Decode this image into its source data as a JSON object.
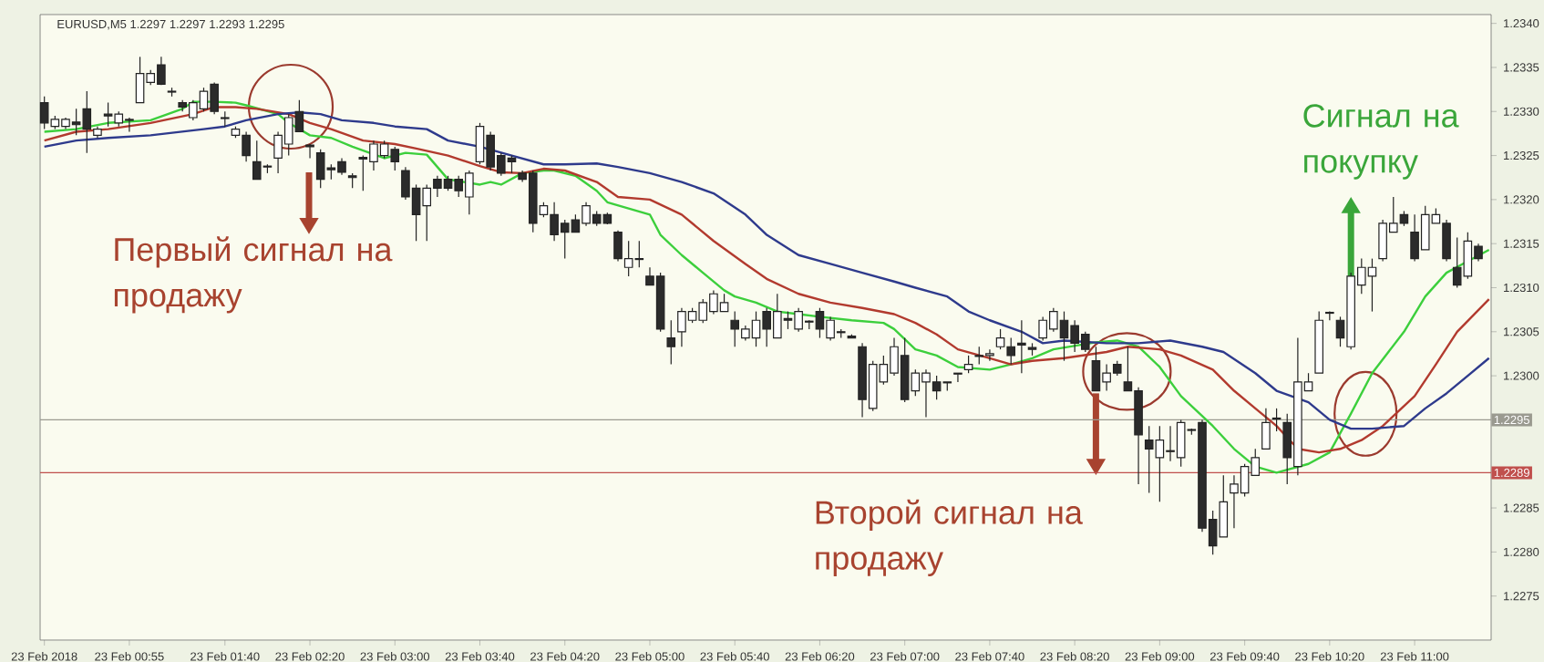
{
  "chart_data": {
    "type": "candlestick",
    "title": "EURUSD,M5 1.2297 1.2297 1.2293 1.2295",
    "x": [
      "2018-02-23T00:15",
      "2018-02-23T00:20",
      "2018-02-23T00:25",
      "2018-02-23T00:30",
      "2018-02-23T00:35",
      "2018-02-23T00:40",
      "2018-02-23T00:45",
      "2018-02-23T00:50",
      "2018-02-23T00:55",
      "2018-02-23T01:00",
      "2018-02-23T01:05",
      "2018-02-23T01:10",
      "2018-02-23T01:15",
      "2018-02-23T01:20",
      "2018-02-23T01:25",
      "2018-02-23T01:30",
      "2018-02-23T01:35",
      "2018-02-23T01:40",
      "2018-02-23T01:45",
      "2018-02-23T01:50",
      "2018-02-23T01:55",
      "2018-02-23T02:00",
      "2018-02-23T02:05",
      "2018-02-23T02:10",
      "2018-02-23T02:15",
      "2018-02-23T02:20",
      "2018-02-23T02:25",
      "2018-02-23T02:30",
      "2018-02-23T02:35",
      "2018-02-23T02:40",
      "2018-02-23T02:45",
      "2018-02-23T02:50",
      "2018-02-23T02:55",
      "2018-02-23T03:00",
      "2018-02-23T03:05",
      "2018-02-23T03:10",
      "2018-02-23T03:15",
      "2018-02-23T03:20",
      "2018-02-23T03:25",
      "2018-02-23T03:30",
      "2018-02-23T03:35",
      "2018-02-23T03:40",
      "2018-02-23T03:45",
      "2018-02-23T03:50",
      "2018-02-23T03:55",
      "2018-02-23T04:00",
      "2018-02-23T04:05",
      "2018-02-23T04:10",
      "2018-02-23T04:15",
      "2018-02-23T04:20",
      "2018-02-23T04:25",
      "2018-02-23T04:30",
      "2018-02-23T04:35",
      "2018-02-23T04:40",
      "2018-02-23T04:45",
      "2018-02-23T04:50",
      "2018-02-23T04:55",
      "2018-02-23T05:00",
      "2018-02-23T05:05",
      "2018-02-23T05:10",
      "2018-02-23T05:15",
      "2018-02-23T05:20",
      "2018-02-23T05:25",
      "2018-02-23T05:30",
      "2018-02-23T05:35",
      "2018-02-23T05:40",
      "2018-02-23T05:45",
      "2018-02-23T05:50",
      "2018-02-23T05:55",
      "2018-02-23T06:00",
      "2018-02-23T06:05",
      "2018-02-23T06:10",
      "2018-02-23T06:15",
      "2018-02-23T06:20",
      "2018-02-23T06:25",
      "2018-02-23T06:30",
      "2018-02-23T06:35",
      "2018-02-23T06:40",
      "2018-02-23T06:45",
      "2018-02-23T06:50",
      "2018-02-23T06:55",
      "2018-02-23T07:00",
      "2018-02-23T07:05",
      "2018-02-23T07:10",
      "2018-02-23T07:15",
      "2018-02-23T07:20",
      "2018-02-23T07:25",
      "2018-02-23T07:30",
      "2018-02-23T07:35",
      "2018-02-23T07:40",
      "2018-02-23T07:45",
      "2018-02-23T07:50",
      "2018-02-23T07:55",
      "2018-02-23T08:00",
      "2018-02-23T08:05",
      "2018-02-23T08:10",
      "2018-02-23T08:15",
      "2018-02-23T08:20",
      "2018-02-23T08:25",
      "2018-02-23T08:30",
      "2018-02-23T08:35",
      "2018-02-23T08:40",
      "2018-02-23T08:45",
      "2018-02-23T08:50",
      "2018-02-23T08:55",
      "2018-02-23T09:00",
      "2018-02-23T09:05",
      "2018-02-23T09:10",
      "2018-02-23T09:15",
      "2018-02-23T09:20",
      "2018-02-23T09:25",
      "2018-02-23T09:30",
      "2018-02-23T09:35",
      "2018-02-23T09:40",
      "2018-02-23T09:45",
      "2018-02-23T09:50",
      "2018-02-23T09:55",
      "2018-02-23T10:00",
      "2018-02-23T10:05",
      "2018-02-23T10:10",
      "2018-02-23T10:15",
      "2018-02-23T10:20",
      "2018-02-23T10:25",
      "2018-02-23T10:30",
      "2018-02-23T10:35",
      "2018-02-23T10:40",
      "2018-02-23T10:45",
      "2018-02-23T10:50",
      "2018-02-23T10:55",
      "2018-02-23T11:00",
      "2018-02-23T11:05",
      "2018-02-23T11:10",
      "2018-02-23T11:15",
      "2018-02-23T11:20",
      "2018-02-23T11:25",
      "2018-02-23T11:30"
    ],
    "ohlc": [
      [
        1.2331,
        1.23317,
        1.2328,
        1.23287
      ],
      [
        1.23283,
        1.23295,
        1.2328,
        1.23291
      ],
      [
        1.23283,
        1.23293,
        1.2328,
        1.23291
      ],
      [
        1.23288,
        1.23303,
        1.23273,
        1.23285
      ],
      [
        1.23303,
        1.23323,
        1.23253,
        1.2328
      ],
      [
        1.23273,
        1.23283,
        1.2327,
        1.2328
      ],
      [
        1.23297,
        1.2331,
        1.23283,
        1.23295
      ],
      [
        1.23287,
        1.233,
        1.23283,
        1.23297
      ],
      [
        1.23291,
        1.23293,
        1.23277,
        1.2329
      ],
      [
        1.2331,
        1.23362,
        1.2331,
        1.23343
      ],
      [
        1.23333,
        1.23347,
        1.2333,
        1.23343
      ],
      [
        1.23353,
        1.23362,
        1.2333,
        1.23331
      ],
      [
        1.23323,
        1.23327,
        1.23317,
        1.23322
      ],
      [
        1.2331,
        1.23313,
        1.233,
        1.23305
      ],
      [
        1.23293,
        1.23313,
        1.2329,
        1.2331
      ],
      [
        1.23303,
        1.23327,
        1.233,
        1.23323
      ],
      [
        1.23331,
        1.23333,
        1.23297,
        1.233
      ],
      [
        1.23293,
        1.233,
        1.23283,
        1.23292
      ],
      [
        1.23273,
        1.23283,
        1.2327,
        1.2328
      ],
      [
        1.23273,
        1.23277,
        1.23243,
        1.2325
      ],
      [
        1.23243,
        1.23267,
        1.23223,
        1.23223
      ],
      [
        1.23238,
        1.2324,
        1.2323,
        1.23237
      ],
      [
        1.23247,
        1.23277,
        1.2323,
        1.23273
      ],
      [
        1.23263,
        1.23297,
        1.2325,
        1.23293
      ],
      [
        1.233,
        1.23313,
        1.23277,
        1.23277
      ],
      [
        1.23262,
        1.23263,
        1.23247,
        1.2326
      ],
      [
        1.23253,
        1.23257,
        1.23213,
        1.23223
      ],
      [
        1.23236,
        1.2324,
        1.23223,
        1.23234
      ],
      [
        1.23243,
        1.23247,
        1.23228,
        1.23231
      ],
      [
        1.23227,
        1.2323,
        1.23213,
        1.23225
      ],
      [
        1.23248,
        1.2325,
        1.2321,
        1.23246
      ],
      [
        1.23243,
        1.23267,
        1.23233,
        1.23263
      ],
      [
        1.2325,
        1.23267,
        1.23247,
        1.23263
      ],
      [
        1.23257,
        1.2326,
        1.23233,
        1.23243
      ],
      [
        1.23233,
        1.23237,
        1.232,
        1.23203
      ],
      [
        1.23213,
        1.23217,
        1.23153,
        1.23183
      ],
      [
        1.23193,
        1.23217,
        1.23153,
        1.23213
      ],
      [
        1.23223,
        1.23227,
        1.23203,
        1.23213
      ],
      [
        1.23223,
        1.23227,
        1.2321,
        1.23213
      ],
      [
        1.23223,
        1.23227,
        1.23203,
        1.2321
      ],
      [
        1.23203,
        1.23233,
        1.23183,
        1.2323
      ],
      [
        1.23243,
        1.23287,
        1.2324,
        1.23283
      ],
      [
        1.23273,
        1.23277,
        1.23233,
        1.23237
      ],
      [
        1.2325,
        1.23253,
        1.23227,
        1.2323
      ],
      [
        1.23247,
        1.2325,
        1.2323,
        1.23243
      ],
      [
        1.2323,
        1.23233,
        1.2322,
        1.23223
      ],
      [
        1.2323,
        1.23233,
        1.23163,
        1.23173
      ],
      [
        1.23183,
        1.23197,
        1.2318,
        1.23193
      ],
      [
        1.23183,
        1.23197,
        1.23153,
        1.2316
      ],
      [
        1.23173,
        1.23177,
        1.23133,
        1.23163
      ],
      [
        1.23177,
        1.23183,
        1.23163,
        1.23163
      ],
      [
        1.23173,
        1.23197,
        1.2317,
        1.23193
      ],
      [
        1.23183,
        1.23187,
        1.2317,
        1.23173
      ],
      [
        1.23183,
        1.23185,
        1.23172,
        1.23173
      ],
      [
        1.23163,
        1.23165,
        1.2313,
        1.23133
      ],
      [
        1.23123,
        1.23153,
        1.23113,
        1.23133
      ],
      [
        1.23133,
        1.23153,
        1.23123,
        1.23132
      ],
      [
        1.23113,
        1.23123,
        1.23103,
        1.23103
      ],
      [
        1.23113,
        1.23117,
        1.2305,
        1.23053
      ],
      [
        1.23043,
        1.23063,
        1.23013,
        1.23033
      ],
      [
        1.2305,
        1.23077,
        1.23033,
        1.23073
      ],
      [
        1.23063,
        1.23077,
        1.2306,
        1.23073
      ],
      [
        1.23063,
        1.23087,
        1.2306,
        1.23083
      ],
      [
        1.23073,
        1.23097,
        1.2307,
        1.23093
      ],
      [
        1.23073,
        1.23093,
        1.23073,
        1.23083
      ],
      [
        1.23063,
        1.23073,
        1.23033,
        1.23053
      ],
      [
        1.23043,
        1.23057,
        1.2304,
        1.23053
      ],
      [
        1.23043,
        1.23073,
        1.23033,
        1.23063
      ],
      [
        1.23073,
        1.23077,
        1.23033,
        1.23053
      ],
      [
        1.23043,
        1.23093,
        1.23043,
        1.23073
      ],
      [
        1.23065,
        1.23073,
        1.23053,
        1.23063
      ],
      [
        1.23053,
        1.23077,
        1.2305,
        1.23073
      ],
      [
        1.23062,
        1.23063,
        1.23053,
        1.23061
      ],
      [
        1.23073,
        1.23077,
        1.23043,
        1.23053
      ],
      [
        1.23043,
        1.23067,
        1.2304,
        1.23063
      ],
      [
        1.2305,
        1.23053,
        1.23043,
        1.23049
      ],
      [
        1.23045,
        1.23047,
        1.23043,
        1.23043
      ],
      [
        1.23033,
        1.23037,
        1.22953,
        1.22973
      ],
      [
        1.22963,
        1.23017,
        1.2296,
        1.23013
      ],
      [
        1.22993,
        1.23023,
        1.2299,
        1.23013
      ],
      [
        1.23003,
        1.23043,
        1.23,
        1.23033
      ],
      [
        1.23023,
        1.23043,
        1.2297,
        1.22973
      ],
      [
        1.22983,
        1.23007,
        1.22977,
        1.23003
      ],
      [
        1.22993,
        1.23007,
        1.22953,
        1.23003
      ],
      [
        1.22993,
        1.23,
        1.22973,
        1.22983
      ],
      [
        1.22993,
        1.22993,
        1.22983,
        1.22992
      ],
      [
        1.23003,
        1.23003,
        1.22993,
        1.23002
      ],
      [
        1.23007,
        1.23023,
        1.23003,
        1.23013
      ],
      [
        1.23023,
        1.23033,
        1.23013,
        1.23022
      ],
      [
        1.23023,
        1.2303,
        1.23017,
        1.23025
      ],
      [
        1.23033,
        1.23053,
        1.2303,
        1.23043
      ],
      [
        1.23033,
        1.23043,
        1.23013,
        1.23023
      ],
      [
        1.23037,
        1.23063,
        1.23003,
        1.23035
      ],
      [
        1.23032,
        1.23037,
        1.23023,
        1.2303
      ],
      [
        1.23043,
        1.23067,
        1.2304,
        1.23063
      ],
      [
        1.23053,
        1.23077,
        1.2305,
        1.23073
      ],
      [
        1.23063,
        1.23073,
        1.23017,
        1.23043
      ],
      [
        1.23057,
        1.23063,
        1.23027,
        1.23037
      ],
      [
        1.23047,
        1.2305,
        1.23027,
        1.2303
      ],
      [
        1.23017,
        1.23033,
        1.22983,
        1.22983
      ],
      [
        1.22993,
        1.23013,
        1.22983,
        1.23003
      ],
      [
        1.23013,
        1.23017,
        1.23,
        1.23003
      ],
      [
        1.22993,
        1.23033,
        1.22983,
        1.22983
      ],
      [
        1.22983,
        1.22987,
        1.22877,
        1.22933
      ],
      [
        1.22927,
        1.22943,
        1.22867,
        1.22917
      ],
      [
        1.22907,
        1.22943,
        1.22857,
        1.22927
      ],
      [
        1.22915,
        1.22943,
        1.22903,
        1.22914
      ],
      [
        1.22907,
        1.2295,
        1.22897,
        1.22947
      ],
      [
        1.22939,
        1.2294,
        1.22933,
        1.22938
      ],
      [
        1.22947,
        1.2295,
        1.22823,
        1.22827
      ],
      [
        1.22837,
        1.22847,
        1.22797,
        1.22807
      ],
      [
        1.22817,
        1.22887,
        1.22817,
        1.22857
      ],
      [
        1.22867,
        1.22887,
        1.22827,
        1.22877
      ],
      [
        1.22867,
        1.229,
        1.22863,
        1.22897
      ],
      [
        1.22887,
        1.22917,
        1.22887,
        1.22907
      ],
      [
        1.22917,
        1.22963,
        1.22917,
        1.22947
      ],
      [
        1.22951,
        1.22963,
        1.22937,
        1.22952
      ],
      [
        1.22947,
        1.22957,
        1.22877,
        1.22907
      ],
      [
        1.22897,
        1.23043,
        1.22887,
        1.22993
      ],
      [
        1.22983,
        1.23003,
        1.22983,
        1.22993
      ],
      [
        1.23003,
        1.23073,
        1.23003,
        1.23063
      ],
      [
        1.23072,
        1.23073,
        1.23063,
        1.23071
      ],
      [
        1.23063,
        1.23067,
        1.23033,
        1.23043
      ],
      [
        1.23033,
        1.23117,
        1.2303,
        1.23113
      ],
      [
        1.23103,
        1.23133,
        1.23093,
        1.23123
      ],
      [
        1.23113,
        1.23133,
        1.23073,
        1.23123
      ],
      [
        1.23133,
        1.23177,
        1.2313,
        1.23173
      ],
      [
        1.23163,
        1.23203,
        1.23163,
        1.23173
      ],
      [
        1.23183,
        1.23187,
        1.2317,
        1.23173
      ],
      [
        1.23163,
        1.23183,
        1.2313,
        1.23133
      ],
      [
        1.23143,
        1.23193,
        1.23143,
        1.23183
      ],
      [
        1.23173,
        1.2319,
        1.23173,
        1.23183
      ],
      [
        1.23173,
        1.23177,
        1.2313,
        1.23133
      ],
      [
        1.23123,
        1.23157,
        1.231,
        1.23103
      ],
      [
        1.23113,
        1.23163,
        1.2311,
        1.23153
      ],
      [
        1.23147,
        1.2315,
        1.2313,
        1.23133
      ]
    ],
    "series": [
      {
        "type": "line",
        "color": "#3ccf3c",
        "x": [
          "2018-02-23T00:15",
          "2018-02-23T00:30",
          "2018-02-23T00:45",
          "2018-02-23T01:05",
          "2018-02-23T01:20",
          "2018-02-23T01:25",
          "2018-02-23T01:35",
          "2018-02-23T01:45",
          "2018-02-23T01:50",
          "2018-02-23T02:05",
          "2018-02-23T02:10",
          "2018-02-23T02:20",
          "2018-02-23T02:30",
          "2018-02-23T02:40",
          "2018-02-23T02:55",
          "2018-02-23T03:05",
          "2018-02-23T03:15",
          "2018-02-23T03:25",
          "2018-02-23T03:40",
          "2018-02-23T03:45",
          "2018-02-23T03:50",
          "2018-02-23T04:00",
          "2018-02-23T04:10",
          "2018-02-23T04:15",
          "2018-02-23T04:25",
          "2018-02-23T04:35",
          "2018-02-23T04:40",
          "2018-02-23T04:50",
          "2018-02-23T05:00",
          "2018-02-23T05:05",
          "2018-02-23T05:15",
          "2018-02-23T05:25",
          "2018-02-23T05:35",
          "2018-02-23T05:40",
          "2018-02-23T05:50",
          "2018-02-23T06:00",
          "2018-02-23T06:10",
          "2018-02-23T06:20",
          "2018-02-23T06:35",
          "2018-02-23T06:50",
          "2018-02-23T06:55",
          "2018-02-23T07:05",
          "2018-02-23T07:15",
          "2018-02-23T07:25",
          "2018-02-23T07:40",
          "2018-02-23T07:50",
          "2018-02-23T08:00",
          "2018-02-23T08:10",
          "2018-02-23T08:30",
          "2018-02-23T08:40",
          "2018-02-23T08:50",
          "2018-02-23T09:00",
          "2018-02-23T09:10",
          "2018-02-23T09:25",
          "2018-02-23T09:35",
          "2018-02-23T09:45",
          "2018-02-23T09:55",
          "2018-02-23T10:10",
          "2018-02-23T10:20",
          "2018-02-23T10:30",
          "2018-02-23T10:40",
          "2018-02-23T10:55",
          "2018-02-23T11:05",
          "2018-02-23T11:15",
          "2018-02-23T11:25",
          "2018-02-23T11:35"
        ],
        "values": [
          1.23277,
          1.2328,
          1.23287,
          1.2329,
          1.23303,
          1.23311,
          1.23311,
          1.2331,
          1.23307,
          1.23297,
          1.23287,
          1.23273,
          1.2327,
          1.2326,
          1.23247,
          1.23253,
          1.23251,
          1.23223,
          1.23217,
          1.2322,
          1.23217,
          1.2323,
          1.23233,
          1.23233,
          1.23227,
          1.2321,
          1.23197,
          1.2319,
          1.23183,
          1.2316,
          1.23137,
          1.23117,
          1.23097,
          1.2309,
          1.23083,
          1.23073,
          1.2307,
          1.23067,
          1.23063,
          1.2306,
          1.23053,
          1.2303,
          1.23023,
          1.2301,
          1.23007,
          1.23013,
          1.2302,
          1.2303,
          1.23038,
          1.2304,
          1.23033,
          1.2301,
          1.22977,
          1.22943,
          1.22917,
          1.22897,
          1.2289,
          1.229,
          1.22913,
          1.22957,
          1.23003,
          1.2305,
          1.2309,
          1.23117,
          1.2313,
          1.23143
        ]
      },
      {
        "type": "line",
        "color": "#b23a2e",
        "x": [
          "2018-02-23T00:15",
          "2018-02-23T00:30",
          "2018-02-23T00:45",
          "2018-02-23T01:05",
          "2018-02-23T01:25",
          "2018-02-23T01:35",
          "2018-02-23T01:45",
          "2018-02-23T01:55",
          "2018-02-23T02:10",
          "2018-02-23T02:20",
          "2018-02-23T02:30",
          "2018-02-23T02:45",
          "2018-02-23T03:00",
          "2018-02-23T03:10",
          "2018-02-23T03:25",
          "2018-02-23T03:40",
          "2018-02-23T03:50",
          "2018-02-23T04:00",
          "2018-02-23T04:10",
          "2018-02-23T04:20",
          "2018-02-23T04:35",
          "2018-02-23T04:45",
          "2018-02-23T05:00",
          "2018-02-23T05:15",
          "2018-02-23T05:30",
          "2018-02-23T05:45",
          "2018-02-23T05:55",
          "2018-02-23T06:10",
          "2018-02-23T06:25",
          "2018-02-23T06:40",
          "2018-02-23T06:55",
          "2018-02-23T07:05",
          "2018-02-23T07:15",
          "2018-02-23T07:25",
          "2018-02-23T07:40",
          "2018-02-23T07:50",
          "2018-02-23T08:00",
          "2018-02-23T08:15",
          "2018-02-23T08:35",
          "2018-02-23T08:45",
          "2018-02-23T09:00",
          "2018-02-23T09:10",
          "2018-02-23T09:25",
          "2018-02-23T09:35",
          "2018-02-23T09:45",
          "2018-02-23T09:55",
          "2018-02-23T10:05",
          "2018-02-23T10:15",
          "2018-02-23T10:25",
          "2018-02-23T10:35",
          "2018-02-23T10:45",
          "2018-02-23T11:00",
          "2018-02-23T11:10",
          "2018-02-23T11:20",
          "2018-02-23T11:35"
        ],
        "values": [
          1.23267,
          1.23277,
          1.2328,
          1.23287,
          1.23297,
          1.23305,
          1.23305,
          1.23303,
          1.23297,
          1.23287,
          1.2328,
          1.23267,
          1.23263,
          1.23258,
          1.2325,
          1.23238,
          1.23231,
          1.2323,
          1.23235,
          1.23233,
          1.2322,
          1.23203,
          1.232,
          1.23183,
          1.23153,
          1.23127,
          1.2311,
          1.23093,
          1.23083,
          1.23077,
          1.2307,
          1.2306,
          1.23047,
          1.2303,
          1.2302,
          1.23013,
          1.23017,
          1.2302,
          1.23027,
          1.23033,
          1.2303,
          1.23023,
          1.23007,
          1.22983,
          1.22963,
          1.22943,
          1.22917,
          1.22913,
          1.22917,
          1.22927,
          1.22943,
          1.22977,
          1.23013,
          1.2305,
          1.23087
        ]
      },
      {
        "type": "line",
        "color": "#2e3a8c",
        "x": [
          "2018-02-23T00:15",
          "2018-02-23T00:30",
          "2018-02-23T00:45",
          "2018-02-23T01:05",
          "2018-02-23T01:30",
          "2018-02-23T01:40",
          "2018-02-23T01:50",
          "2018-02-23T02:05",
          "2018-02-23T02:15",
          "2018-02-23T02:25",
          "2018-02-23T02:35",
          "2018-02-23T02:50",
          "2018-02-23T03:00",
          "2018-02-23T03:15",
          "2018-02-23T03:25",
          "2018-02-23T03:40",
          "2018-02-23T03:55",
          "2018-02-23T04:10",
          "2018-02-23T04:20",
          "2018-02-23T04:35",
          "2018-02-23T04:45",
          "2018-02-23T05:00",
          "2018-02-23T05:15",
          "2018-02-23T05:30",
          "2018-02-23T05:45",
          "2018-02-23T05:55",
          "2018-02-23T06:10",
          "2018-02-23T06:25",
          "2018-02-23T06:40",
          "2018-02-23T06:55",
          "2018-02-23T07:05",
          "2018-02-23T07:20",
          "2018-02-23T07:30",
          "2018-02-23T07:40",
          "2018-02-23T07:55",
          "2018-02-23T08:05",
          "2018-02-23T08:15",
          "2018-02-23T08:35",
          "2018-02-23T08:50",
          "2018-02-23T09:05",
          "2018-02-23T09:20",
          "2018-02-23T09:30",
          "2018-02-23T09:45",
          "2018-02-23T09:55",
          "2018-02-23T10:10",
          "2018-02-23T10:20",
          "2018-02-23T10:30",
          "2018-02-23T10:40",
          "2018-02-23T10:55",
          "2018-02-23T11:05",
          "2018-02-23T11:15",
          "2018-02-23T11:25",
          "2018-02-23T11:35"
        ],
        "values": [
          1.2326,
          1.23267,
          1.2327,
          1.23273,
          1.2328,
          1.23283,
          1.2329,
          1.23297,
          1.23299,
          1.23297,
          1.2329,
          1.23287,
          1.23283,
          1.2328,
          1.23267,
          1.2326,
          1.2325,
          1.2324,
          1.2324,
          1.23241,
          1.23237,
          1.2323,
          1.2322,
          1.23207,
          1.23183,
          1.2316,
          1.23137,
          1.23127,
          1.23117,
          1.23107,
          1.231,
          1.2309,
          1.23073,
          1.23063,
          1.2305,
          1.23037,
          1.2304,
          1.23037,
          1.23037,
          1.2304,
          1.23033,
          1.23027,
          1.23003,
          1.22983,
          1.2297,
          1.2295,
          1.2294,
          1.2294,
          1.22943,
          1.22963,
          1.2298,
          1.23,
          1.2302
        ]
      }
    ],
    "xlim": [
      "2018-02-23T00:13",
      "2018-02-23T11:36"
    ],
    "xticks": [
      {
        "value": "2018-02-23T00:15",
        "label": "23 Feb 2018"
      },
      {
        "value": "2018-02-23T00:55",
        "label": "23 Feb 00:55"
      },
      {
        "value": "2018-02-23T01:40",
        "label": "23 Feb 01:40"
      },
      {
        "value": "2018-02-23T02:20",
        "label": "23 Feb 02:20"
      },
      {
        "value": "2018-02-23T03:00",
        "label": "23 Feb 03:00"
      },
      {
        "value": "2018-02-23T03:40",
        "label": "23 Feb 03:40"
      },
      {
        "value": "2018-02-23T04:20",
        "label": "23 Feb 04:20"
      },
      {
        "value": "2018-02-23T05:00",
        "label": "23 Feb 05:00"
      },
      {
        "value": "2018-02-23T05:40",
        "label": "23 Feb 05:40"
      },
      {
        "value": "2018-02-23T06:20",
        "label": "23 Feb 06:20"
      },
      {
        "value": "2018-02-23T07:00",
        "label": "23 Feb 07:00"
      },
      {
        "value": "2018-02-23T07:40",
        "label": "23 Feb 07:40"
      },
      {
        "value": "2018-02-23T08:20",
        "label": "23 Feb 08:20"
      },
      {
        "value": "2018-02-23T09:00",
        "label": "23 Feb 09:00"
      },
      {
        "value": "2018-02-23T09:40",
        "label": "23 Feb 09:40"
      },
      {
        "value": "2018-02-23T10:20",
        "label": "23 Feb 10:20"
      },
      {
        "value": "2018-02-23T11:00",
        "label": "23 Feb 11:00"
      }
    ],
    "ylim": [
      1.227,
      1.2341
    ],
    "yticks": [
      {
        "value": 1.234,
        "label": "1.2340"
      },
      1.2335,
      {
        "value": 1.233,
        "label": "1.2330"
      },
      1.2325,
      {
        "value": 1.232,
        "label": "1.2320"
      },
      1.2315,
      {
        "value": 1.231,
        "label": "1.2310"
      },
      1.2305,
      {
        "value": 1.23,
        "label": "1.2300"
      },
      1.2285,
      {
        "value": 1.228,
        "label": "1.2280"
      },
      1.2275
    ],
    "ref_lines": [
      {
        "axis": "y",
        "value": 1.2295,
        "label": "1.2295",
        "color": "#9a9a90"
      },
      {
        "axis": "y",
        "value": 1.2289,
        "label": "1.2289",
        "color": "#c0504d"
      }
    ],
    "annotations": [
      "Первый сигнал на продажу",
      {
        "text": "Второй сигнал на продажу",
        "x": "2018-02-23T08:30",
        "y": 1.2298
      },
      {
        "text": "Сигнал на покупку",
        "x": "2018-02-23T10:30",
        "y": 1.2311
      }
    ]
  }
}
